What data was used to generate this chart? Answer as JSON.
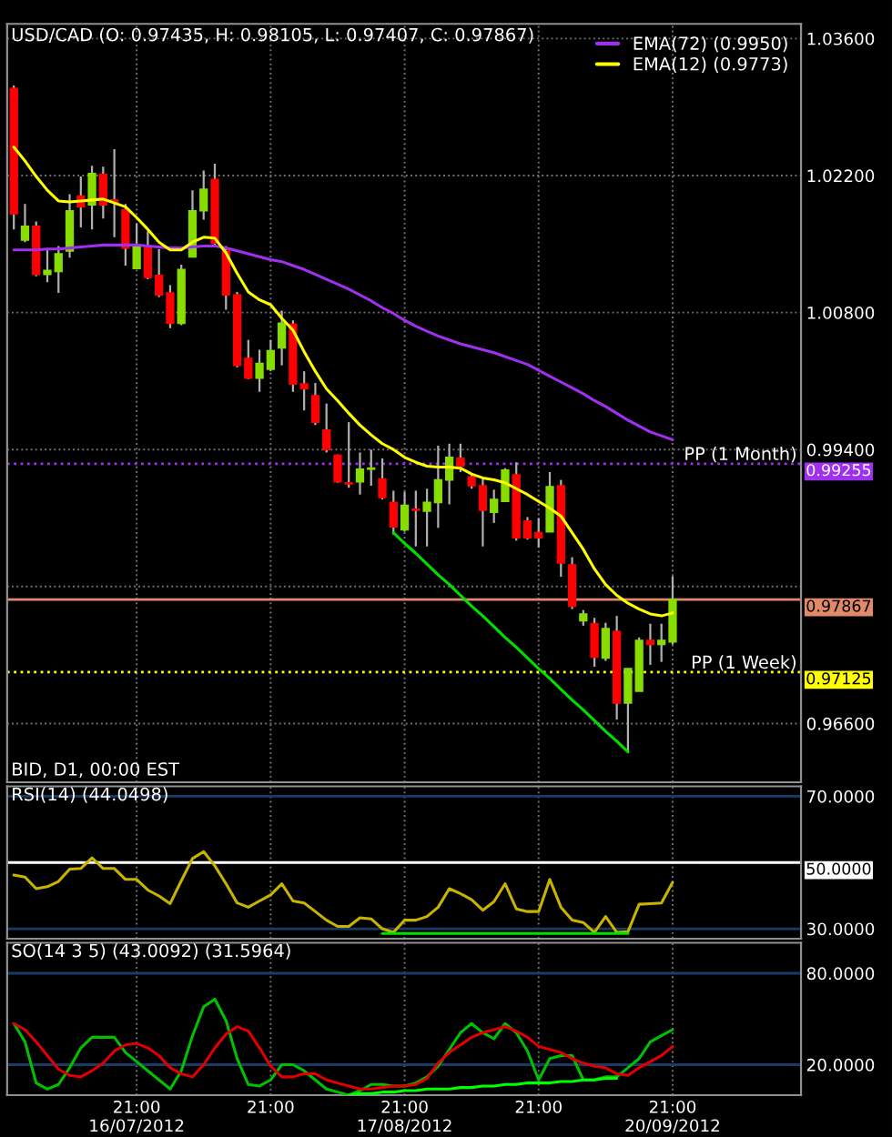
{
  "chart_data": [
    {
      "type": "candlestick",
      "title": "USD/CAD (O: 0.97435, H: 0.98105, L: 0.97407, C: 0.97867)",
      "categories": [
        null,
        null,
        null,
        null,
        null,
        null,
        null,
        null,
        null,
        null,
        null,
        null,
        null,
        null,
        null,
        null,
        null,
        null,
        null,
        null,
        null,
        null,
        null,
        null,
        null,
        null,
        null,
        null,
        null,
        null,
        null,
        null,
        null,
        null,
        null,
        null,
        null,
        null,
        null,
        null,
        null,
        null,
        null,
        null,
        null,
        null,
        null,
        null,
        null,
        null,
        null,
        null,
        null,
        null,
        null,
        null,
        null,
        null,
        null,
        null
      ],
      "ohlc": [
        [
          1.0309,
          1.0312,
          1.0165,
          1.0181
        ],
        [
          1.0154,
          1.0191,
          1.0152,
          1.0168
        ],
        [
          1.0168,
          1.0173,
          1.0117,
          1.0119
        ],
        [
          1.0119,
          1.0145,
          1.0111,
          1.0123
        ],
        [
          1.0122,
          1.0148,
          1.01,
          1.014
        ],
        [
          1.0143,
          1.0201,
          1.0136,
          1.0184
        ],
        [
          1.0199,
          1.0219,
          1.0167,
          1.0188
        ],
        [
          1.019,
          1.023,
          1.0165,
          1.0222
        ],
        [
          1.0221,
          1.0229,
          1.0176,
          1.019
        ],
        [
          1.0195,
          1.0247,
          1.0157,
          1.0193
        ],
        [
          1.0185,
          1.0191,
          1.0128,
          1.0146
        ],
        [
          1.0125,
          1.0171,
          1.0125,
          1.0148
        ],
        [
          1.0146,
          1.0163,
          1.0114,
          1.0116
        ],
        [
          1.0118,
          1.0145,
          1.0096,
          1.0098
        ],
        [
          1.01,
          1.0108,
          1.0064,
          1.0069
        ],
        [
          1.0069,
          1.0129,
          1.0067,
          1.0124
        ],
        [
          1.0137,
          1.0205,
          1.0136,
          1.0184
        ],
        [
          1.0184,
          1.0225,
          1.0175,
          1.0206
        ],
        [
          1.0216,
          1.0232,
          1.0148,
          1.0151
        ],
        [
          1.0143,
          1.0148,
          1.0083,
          1.0098
        ],
        [
          1.0098,
          1.0101,
          1.0024,
          1.0026
        ],
        [
          1.0033,
          1.0052,
          1.0012,
          1.0013
        ],
        [
          1.0013,
          1.0042,
          0.9999,
          1.0028
        ],
        [
          1.0022,
          1.0052,
          1.002,
          1.0041
        ],
        [
          1.0044,
          1.0082,
          1.0026,
          1.0069
        ],
        [
          1.0068,
          1.0072,
          0.9999,
          1.0007
        ],
        [
          1.0007,
          1.002,
          0.998,
          1.0002
        ],
        [
          0.9995,
          1.0008,
          0.9965,
          0.9968
        ],
        [
          0.996,
          0.9987,
          0.9937,
          0.994
        ],
        [
          0.9934,
          0.9935,
          0.9906,
          0.9907
        ],
        [
          0.9906,
          0.9968,
          0.9901,
          0.9905
        ],
        [
          0.9907,
          0.9937,
          0.9894,
          0.992
        ],
        [
          0.992,
          0.994,
          0.9903,
          0.9921
        ],
        [
          0.991,
          0.9931,
          0.9889,
          0.9891
        ],
        [
          0.9886,
          0.9898,
          0.9853,
          0.9861
        ],
        [
          0.9858,
          0.9897,
          0.9856,
          0.9883
        ],
        [
          0.9879,
          0.9898,
          0.9841,
          0.9878
        ],
        [
          0.9877,
          0.99,
          0.9841,
          0.9886
        ],
        [
          0.9886,
          0.9944,
          0.986,
          0.9909
        ],
        [
          0.9909,
          0.9946,
          0.9884,
          0.9932
        ],
        [
          0.9931,
          0.9946,
          0.9917,
          0.9923
        ],
        [
          0.9912,
          0.9915,
          0.99,
          0.9903
        ],
        [
          0.9903,
          0.9912,
          0.9841,
          0.9878
        ],
        [
          0.9876,
          0.9899,
          0.9865,
          0.9889
        ],
        [
          0.9887,
          0.9921,
          0.9887,
          0.9919
        ],
        [
          0.9914,
          0.9927,
          0.9847,
          0.985
        ],
        [
          0.9867,
          0.9871,
          0.9848,
          0.985
        ],
        [
          0.9855,
          0.987,
          0.984,
          0.985
        ],
        [
          0.9856,
          0.9917,
          0.9856,
          0.9902
        ],
        [
          0.9903,
          0.9909,
          0.981,
          0.9824
        ],
        [
          0.9822,
          0.983,
          0.9777,
          0.978
        ],
        [
          0.9765,
          0.9776,
          0.976,
          0.9772
        ],
        [
          0.9762,
          0.9768,
          0.9718,
          0.9728
        ],
        [
          0.9727,
          0.9763,
          0.9724,
          0.9757
        ],
        [
          0.9754,
          0.977,
          0.9664,
          0.9681
        ],
        [
          0.9681,
          0.9716,
          0.9631,
          0.9716
        ],
        [
          0.9693,
          0.9748,
          0.9693,
          0.9745
        ],
        [
          0.9745,
          0.9762,
          0.972,
          0.9741
        ],
        [
          0.9741,
          0.9762,
          0.9723,
          0.9745
        ],
        [
          0.97435,
          0.98105,
          0.97407,
          0.97867
        ]
      ],
      "colors": [
        "#ff0000",
        "#88dd00",
        "#ff0000",
        "#88dd00",
        "#88dd00",
        "#88dd00",
        "#ff0000",
        "#88dd00",
        "#ff0000",
        "#ff0000",
        "#ff0000",
        "#88dd00",
        "#ff0000",
        "#ff0000",
        "#ff0000",
        "#88dd00",
        "#88dd00",
        "#88dd00",
        "#ff0000",
        "#ff0000",
        "#ff0000",
        "#ff0000",
        "#88dd00",
        "#88dd00",
        "#88dd00",
        "#ff0000",
        "#ff0000",
        "#ff0000",
        "#ff0000",
        "#ff0000",
        "#ff0000",
        "#88dd00",
        "#88dd00",
        "#ff0000",
        "#ff0000",
        "#88dd00",
        "#ff0000",
        "#88dd00",
        "#88dd00",
        "#88dd00",
        "#ff0000",
        "#ff0000",
        "#ff0000",
        "#88dd00",
        "#88dd00",
        "#ff0000",
        "#ff0000",
        "#ff0000",
        "#88dd00",
        "#ff0000",
        "#ff0000",
        "#88dd00",
        "#ff0000",
        "#88dd00",
        "#ff0000",
        "#88dd00",
        "#88dd00",
        "#ff0000",
        "#88dd00",
        "#88dd00"
      ],
      "series": [
        {
          "type": "line",
          "name": "EMA(72) (0.9950)",
          "color": "#a030f0",
          "values": [
            1.0144,
            1.0144,
            1.0144,
            1.0145,
            1.0145,
            1.0146,
            1.0147,
            1.0148,
            1.0149,
            1.0149,
            1.0149,
            1.0149,
            1.0148,
            1.0147,
            1.0146,
            1.0146,
            1.0147,
            1.0148,
            1.0148,
            1.0146,
            1.0143,
            1.014,
            1.0137,
            1.0134,
            1.0132,
            1.0128,
            1.0124,
            1.0119,
            1.0114,
            1.0109,
            1.0104,
            1.0098,
            1.0092,
            1.0085,
            1.0079,
            1.0072,
            1.0066,
            1.0061,
            1.0056,
            1.0052,
            1.0048,
            1.0045,
            1.0042,
            1.0039,
            1.0035,
            1.0031,
            1.0027,
            1.0021,
            1.0015,
            1.0009,
            1.0003,
            0.9997,
            0.999,
            0.9984,
            0.9977,
            0.997,
            0.9964,
            0.9958,
            0.9954,
            0.995
          ]
        },
        {
          "type": "line",
          "name": "EMA(12) (0.9773)",
          "color": "#ffff00",
          "values": [
            1.0249,
            1.0235,
            1.0219,
            1.0205,
            1.0194,
            1.0193,
            1.0194,
            1.0195,
            1.0196,
            1.0192,
            1.0188,
            1.0177,
            1.0165,
            1.0152,
            1.0144,
            1.0144,
            1.0152,
            1.0157,
            1.0156,
            1.0141,
            1.012,
            1.0101,
            1.0093,
            1.0088,
            1.0074,
            1.0062,
            1.004,
            1.002,
            1.0002,
            0.999,
            0.9977,
            0.9965,
            0.9955,
            0.9946,
            0.994,
            0.9932,
            0.9927,
            0.9923,
            0.9922,
            0.9922,
            0.9921,
            0.9915,
            0.9911,
            0.9909,
            0.9906,
            0.99,
            0.9894,
            0.9887,
            0.988,
            0.9872,
            0.9855,
            0.9838,
            0.9818,
            0.9802,
            0.9791,
            0.9783,
            0.9777,
            0.9772,
            0.977,
            0.9773
          ]
        },
        {
          "type": "line",
          "color": "#00e000",
          "values": [
            null,
            null,
            null,
            null,
            null,
            null,
            null,
            null,
            null,
            null,
            null,
            null,
            null,
            null,
            null,
            null,
            null,
            null,
            null,
            null,
            null,
            null,
            null,
            null,
            null,
            null,
            null,
            null,
            null,
            null,
            null,
            null,
            null,
            null,
            0.9855,
            0.9844,
            0.9834,
            0.9823,
            0.9812,
            0.9802,
            0.9791,
            0.978,
            0.977,
            0.9759,
            0.9748,
            0.9738,
            0.9727,
            0.9716,
            0.9706,
            0.9695,
            0.9684,
            0.9674,
            0.9663,
            0.9652,
            0.9642,
            0.9631,
            null,
            null,
            null,
            null
          ]
        }
      ],
      "ylim": [
        0.96,
        1.0375
      ],
      "yticks": [
        {
          "value": 1.036,
          "label": "1.03600"
        },
        {
          "value": 1.022,
          "label": "1.02200"
        },
        {
          "value": 1.008,
          "label": "1.00800"
        },
        {
          "value": 0.994,
          "label": "0.99400"
        },
        {
          "value": 0.98,
          "label": null
        },
        {
          "value": 0.966,
          "label": "0.96600"
        }
      ],
      "ref_lines": [
        {
          "axis": "y",
          "value": 0.99255,
          "label": "0.99255",
          "color": "#a030f0",
          "line_style": "dotted"
        },
        {
          "axis": "y",
          "value": 0.97125,
          "label": "0.97125",
          "color": "#ffff00",
          "line_style": "dotted"
        },
        {
          "axis": "y",
          "value": 0.97867,
          "label": "0.97867",
          "color": "#e08a6a",
          "line_style": "solid"
        }
      ],
      "annotations": [
        {
          "text": "PP (1 Month)",
          "y": 0.99255
        },
        {
          "text": "PP (1 Week)",
          "y": 0.97125
        },
        "BID, D1, 00:00 EST"
      ],
      "legend": "top right",
      "grid": true,
      "tick_labels": "y"
    },
    {
      "type": "line",
      "title": "RSI(14) (44.0498)",
      "categories": [
        null,
        null,
        null,
        null,
        null,
        null,
        null,
        null,
        null,
        null,
        null,
        null,
        null,
        null,
        null,
        null,
        null,
        null,
        null,
        null,
        null,
        null,
        null,
        null,
        null,
        null,
        null,
        null,
        null,
        null,
        null,
        null,
        null,
        null,
        null,
        null,
        null,
        null,
        null,
        null,
        null,
        null,
        null,
        null,
        null,
        null,
        null,
        null,
        null,
        null,
        null,
        null,
        null,
        null,
        null,
        null,
        null,
        null,
        null,
        null
      ],
      "series": [
        {
          "type": "line",
          "color": "#c8b400",
          "values": [
            46.2,
            45.6,
            42.1,
            42.7,
            44.3,
            48.0,
            48.2,
            51.4,
            48.2,
            48.2,
            44.9,
            44.9,
            41.7,
            39.9,
            37.6,
            44.5,
            51.2,
            53.3,
            49.0,
            43.6,
            37.8,
            36.5,
            38.4,
            40.2,
            43.6,
            38.4,
            37.8,
            35.2,
            32.6,
            30.7,
            30.7,
            33.3,
            33.0,
            30.0,
            28.9,
            32.6,
            32.6,
            33.7,
            36.5,
            42.1,
            40.6,
            38.8,
            35.6,
            38.2,
            43.6,
            36.0,
            35.2,
            35.2,
            44.9,
            36.5,
            32.6,
            31.9,
            28.9,
            33.7,
            28.9,
            29.1,
            37.4,
            37.6,
            37.8,
            44.0
          ]
        },
        {
          "type": "line",
          "color": "#00e000",
          "values": [
            null,
            null,
            null,
            null,
            null,
            null,
            null,
            null,
            null,
            null,
            null,
            null,
            null,
            null,
            null,
            null,
            null,
            null,
            null,
            null,
            null,
            null,
            null,
            null,
            null,
            null,
            null,
            null,
            null,
            null,
            null,
            null,
            null,
            28.6,
            28.6,
            28.6,
            28.6,
            28.6,
            28.6,
            28.6,
            28.6,
            28.6,
            28.6,
            28.6,
            28.6,
            28.6,
            28.6,
            28.6,
            28.6,
            28.6,
            28.6,
            28.6,
            28.6,
            28.6,
            28.6,
            28.6,
            null,
            null,
            null,
            null
          ]
        }
      ],
      "ylim": [
        27,
        73
      ],
      "yticks": [
        {
          "value": 70,
          "label": "70.0000"
        },
        {
          "value": 30,
          "label": "30.0000"
        }
      ],
      "ref_lines": [
        {
          "axis": "y",
          "value": 50,
          "label": "50.0000",
          "color": "#ffffff",
          "line_style": "solid"
        }
      ],
      "grid": true,
      "tick_labels": "y"
    },
    {
      "type": "line",
      "title": "SO(14 3 5) (43.0092) (31.5964)",
      "categories": [
        null,
        null,
        null,
        null,
        null,
        null,
        null,
        null,
        null,
        null,
        null,
        "21:00\n16/07/2012",
        null,
        null,
        null,
        null,
        null,
        null,
        null,
        null,
        null,
        null,
        null,
        "21:00",
        null,
        null,
        null,
        null,
        null,
        null,
        null,
        null,
        null,
        null,
        null,
        "21:00\n17/08/2012",
        null,
        null,
        null,
        null,
        null,
        null,
        null,
        null,
        null,
        null,
        null,
        "21:00",
        null,
        null,
        null,
        null,
        null,
        null,
        null,
        null,
        null,
        null,
        null,
        "21:00\n20/09/2012"
      ],
      "series": [
        {
          "type": "line",
          "color": "#00c000",
          "values": [
            47,
            35,
            8,
            4,
            7,
            18,
            31,
            38,
            38,
            38,
            28,
            22,
            16,
            10,
            4,
            16,
            39,
            58,
            63,
            49,
            24,
            7,
            6,
            10,
            20,
            20,
            16,
            10,
            4,
            2,
            0,
            3,
            7,
            7,
            6,
            6,
            8,
            12,
            19,
            30,
            41,
            47,
            41,
            37,
            47,
            41,
            29,
            10,
            24,
            26,
            26,
            10,
            10,
            12,
            12,
            18,
            24,
            35,
            39,
            43
          ]
        },
        {
          "type": "line",
          "color": "#e00000",
          "values": [
            47,
            43,
            35,
            26,
            17,
            13,
            12,
            16,
            21,
            29,
            33,
            34,
            31,
            26,
            18,
            14,
            12,
            20,
            31,
            40,
            45,
            42,
            31,
            19,
            12,
            12,
            14,
            14,
            10,
            8,
            6,
            4,
            4,
            5,
            6,
            6,
            7,
            11,
            21,
            28,
            33,
            38,
            41,
            43,
            45,
            42,
            38,
            32,
            30,
            28,
            24,
            21,
            19,
            18,
            14,
            13,
            18,
            22,
            26,
            32
          ]
        },
        {
          "type": "line",
          "color": "#00ff00",
          "values": [
            null,
            null,
            null,
            null,
            null,
            null,
            null,
            null,
            null,
            null,
            null,
            null,
            null,
            null,
            null,
            null,
            null,
            null,
            null,
            null,
            null,
            null,
            null,
            null,
            null,
            null,
            null,
            null,
            null,
            null,
            0,
            1,
            1,
            2,
            2,
            3,
            3,
            4,
            4,
            4,
            5,
            5,
            6,
            6,
            7,
            7,
            8,
            8,
            8,
            9,
            9,
            10,
            10,
            11,
            11,
            null,
            null,
            null,
            null,
            null
          ]
        }
      ],
      "ylim": [
        0,
        100
      ],
      "yticks": [
        {
          "value": 80,
          "label": "80.0000"
        },
        {
          "value": 20,
          "label": "20.0000"
        }
      ],
      "grid": true
    }
  ]
}
